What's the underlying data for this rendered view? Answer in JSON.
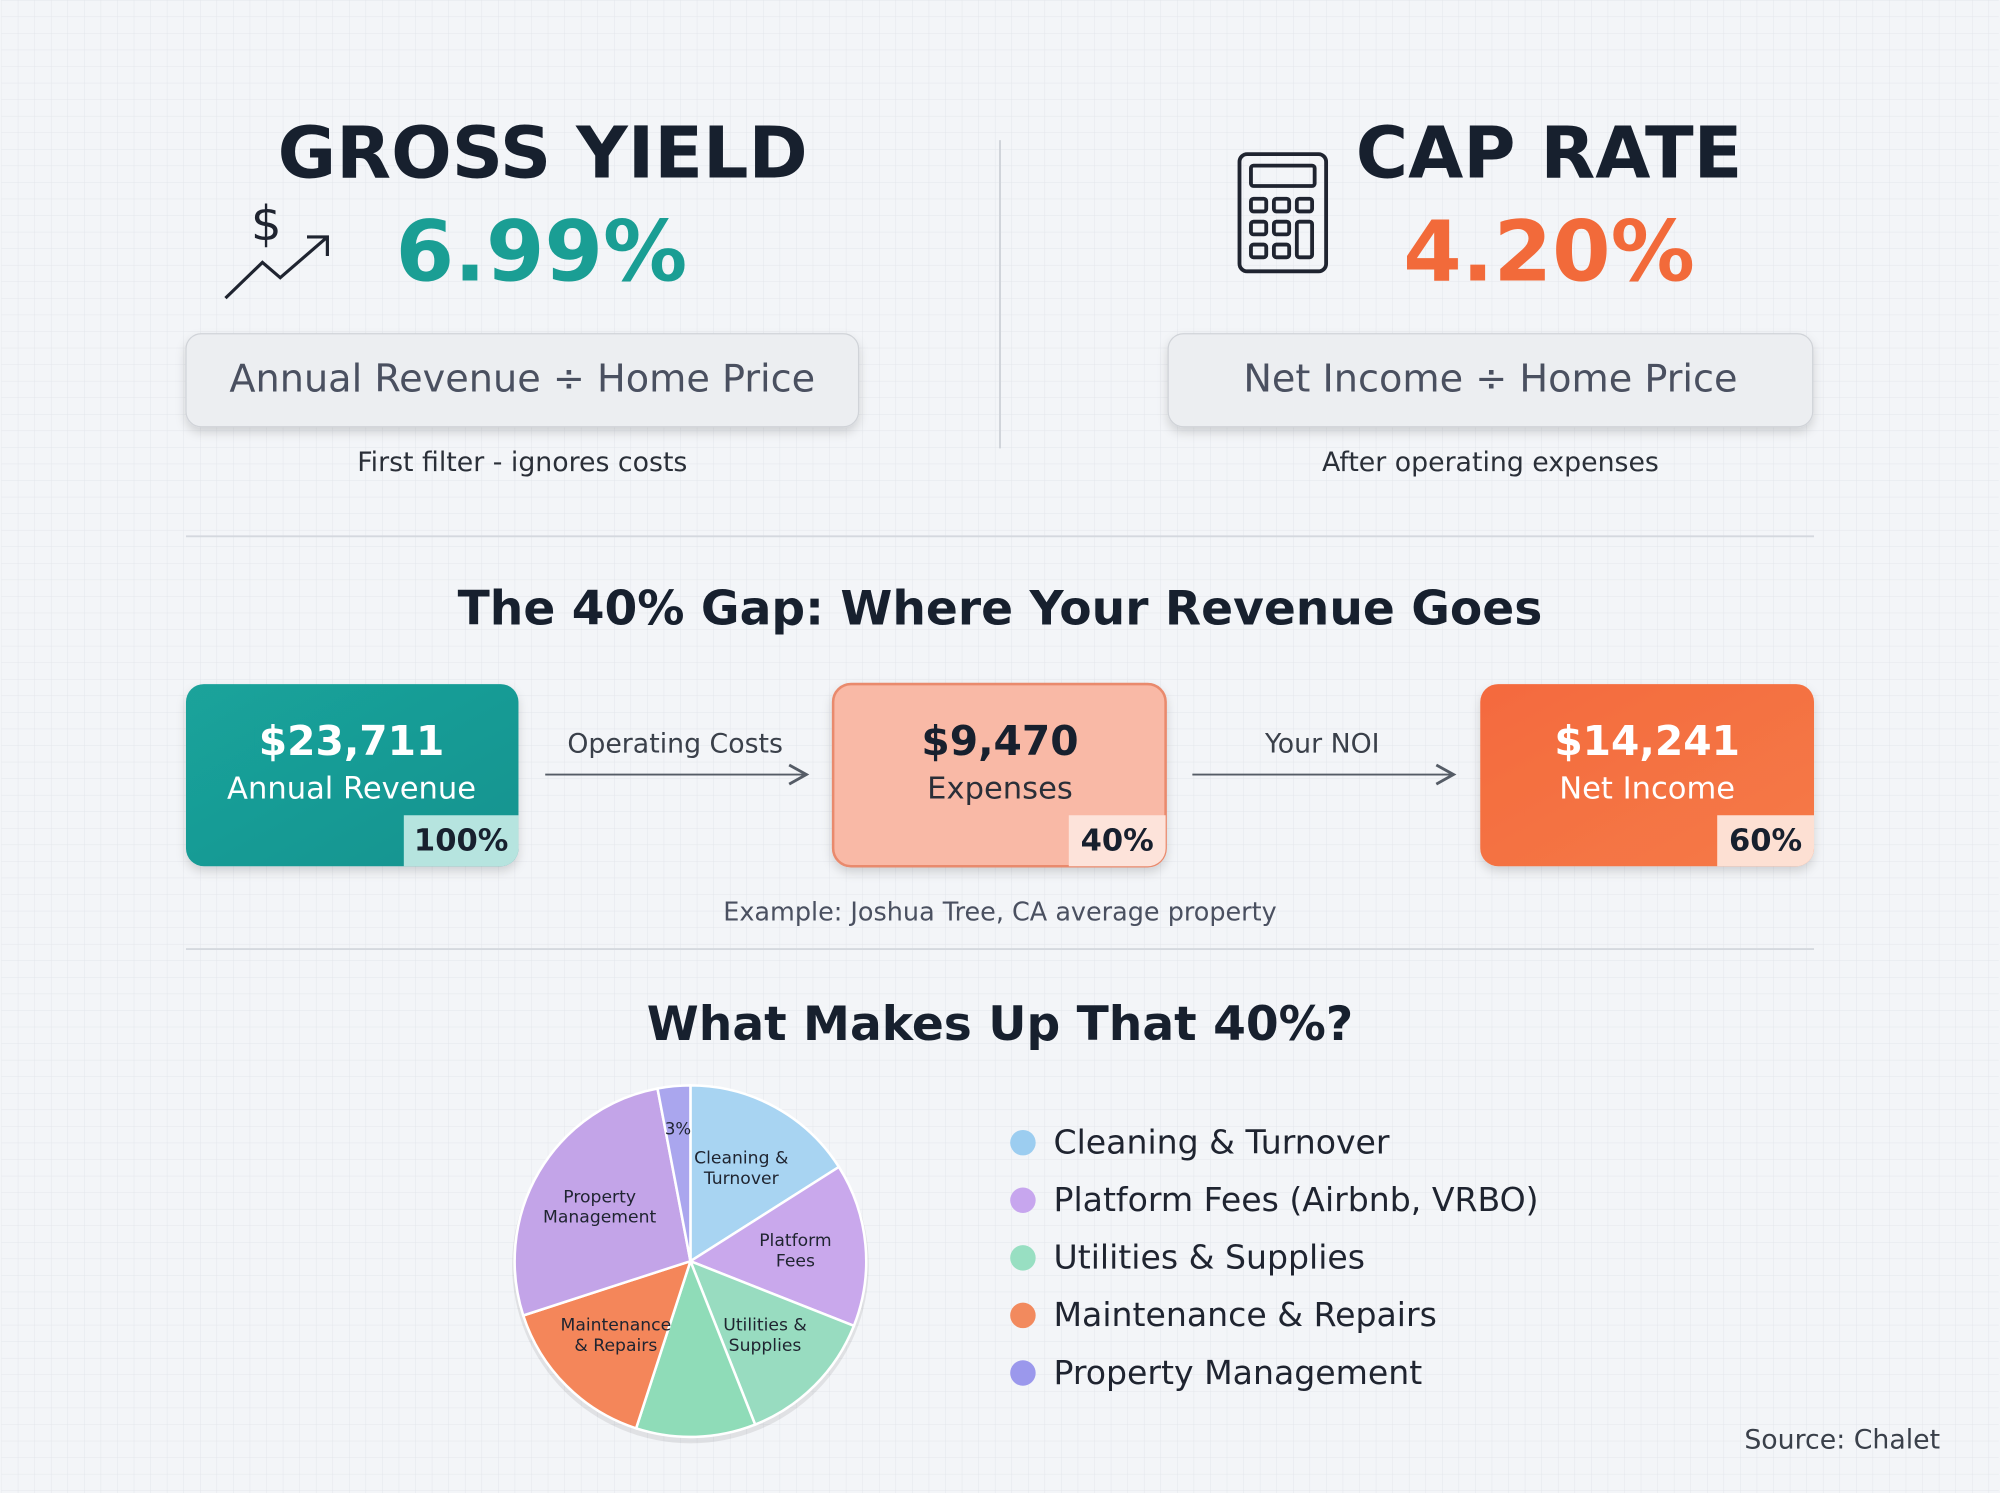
{
  "gross_yield": {
    "title": "GROSS YIELD",
    "value": "6.99%",
    "formula": "Annual Revenue ÷ Home Price",
    "note": "First filter - ignores costs"
  },
  "cap_rate": {
    "title": "CAP RATE",
    "value": "4.20%",
    "formula": "Net Income ÷ Home Price",
    "note": "After operating expenses"
  },
  "gap": {
    "title": "The 40% Gap: Where Your Revenue Goes",
    "boxes": [
      {
        "amount": "$23,711",
        "label": "Annual Revenue",
        "share": "100%"
      },
      {
        "amount": "$9,470",
        "label": "Expenses",
        "share": "40%"
      },
      {
        "amount": "$14,241",
        "label": "Net Income",
        "share": "60%"
      }
    ],
    "arrows": [
      "Operating Costs",
      "Your NOI"
    ],
    "note": "Example: Joshua Tree, CA average property"
  },
  "chart_data": {
    "type": "pie",
    "title": "What Makes Up That 40%?",
    "categories": [
      [
        "Cleaning &",
        "Turnover"
      ],
      [
        "Platform",
        "Fees"
      ],
      [
        "Utilities &",
        "Supplies"
      ],
      null,
      [
        "Maintenance",
        "& Repairs"
      ],
      [
        "Property",
        "Management"
      ],
      null
    ],
    "values": [
      16,
      15,
      13,
      11,
      15,
      27,
      3
    ],
    "value_labels": [
      null,
      null,
      null,
      null,
      null,
      null,
      "3%"
    ],
    "colors": [
      "#a8d4f2",
      "#c9a8ec",
      "#98dcc0",
      "#8fdcb8",
      "#f4865a",
      "#c3a4e8",
      "#aaa6ee"
    ],
    "legend": [
      {
        "name": "Cleaning & Turnover",
        "color": "#9ccdf0"
      },
      {
        "name": "Platform Fees (Airbnb, VRBO)",
        "color": "#c7a6ee"
      },
      {
        "name": "Utilities & Supplies",
        "color": "#98dfc2"
      },
      {
        "name": "Maintenance & Repairs",
        "color": "#f28a5e"
      },
      {
        "name": "Property Management",
        "color": "#9b98ec"
      }
    ]
  },
  "source": "Source: Chalet"
}
